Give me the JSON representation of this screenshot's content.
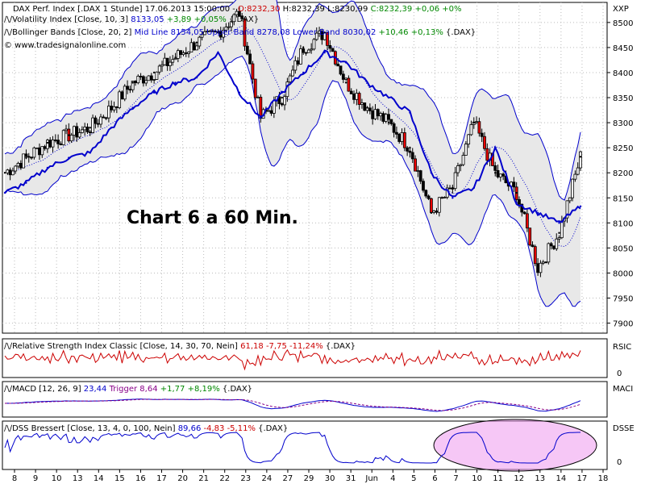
{
  "main_panel": {
    "title_line": {
      "prefix": "DAX Perf. Index [.DAX  1 Stunde] 17.06.2013 15:00:00 - ",
      "open": "O:8232,30",
      "high": "H:8232,39",
      "low": "L:8230,99",
      "close": "C:8232,39",
      "change": "+0,06 +0%"
    },
    "vix_line": {
      "label": "Volatility Index [Close, 10, 3]",
      "value": "8133,05",
      "change": "+3,89 +0,05%",
      "suffix": "{.DAX}"
    },
    "boll_line": {
      "label": "Bollinger Bands [Close, 20, 2]",
      "values": "Mid Line 8154,05 Upper Band 8278,08 Lower Band 8030,02",
      "change": "+10,46 +0,13%",
      "suffix": "{.DAX}"
    },
    "copyright": "© www.tradesignalonline.com",
    "annotation": "Chart 6 a 60 Min.",
    "axis_label": "XXP",
    "ticks": [
      "8500",
      "8450",
      "8400",
      "8350",
      "8300",
      "8250",
      "8200",
      "8150",
      "8100",
      "8050",
      "8000",
      "7950",
      "7900"
    ]
  },
  "rsi_panel": {
    "label": "Relative Strength Index Classic [Close, 14, 30, 70, Nein]",
    "value": "61,18",
    "change": "-7,75 -11,24%",
    "suffix": "{.DAX}",
    "axis_label": "RSIC",
    "tick": "0"
  },
  "macd_panel": {
    "label": "MACD [12, 26, 9]",
    "value": "23,44",
    "trigger_label": "Trigger",
    "trigger": "8,64",
    "change": "+1,77 +8,19%",
    "suffix": "{.DAX}",
    "axis_label": "MACI"
  },
  "dss_panel": {
    "label": "DSS Bressert [Close, 13, 4, 0, 100, Nein]",
    "value": "89,66",
    "change": "-4,83 -5,11%",
    "suffix": "{.DAX}",
    "axis_label": "DSSE",
    "tick": "0"
  },
  "x_axis": {
    "labels": [
      "8",
      "9",
      "10",
      "13",
      "14",
      "15",
      "16",
      "17",
      "20",
      "21",
      "22",
      "23",
      "24",
      "27",
      "29",
      "30",
      "31",
      "Jun",
      "4",
      "5",
      "6",
      "7",
      "10",
      "11",
      "12",
      "13",
      "14",
      "17",
      "18"
    ]
  },
  "colors": {
    "price_line": "#000000",
    "bollinger_bands": "#0000cc",
    "volatility_index": "#0000cc",
    "band_fill": "#e8e8e8",
    "rsi": "#cc0000",
    "macd": "#0000cc",
    "macd_trigger": "#880088",
    "dss": "#0000cc",
    "highlight": "#ee99ee",
    "change_positive": "#008800",
    "change_negative": "#cc0000"
  },
  "chart_data": {
    "type": "line",
    "x": [
      "8",
      "9",
      "10",
      "13",
      "14",
      "15",
      "16",
      "17",
      "20",
      "21",
      "22",
      "23",
      "24",
      "27",
      "29",
      "30",
      "31",
      "Jun",
      "4",
      "5",
      "6",
      "7",
      "10",
      "11",
      "12",
      "13",
      "14",
      "17"
    ],
    "ylim": [
      7880,
      8540
    ],
    "series": [
      {
        "name": "DAX Perf. Index",
        "values": [
          8200,
          8230,
          8260,
          8275,
          8290,
          8330,
          8380,
          8400,
          8430,
          8460,
          8480,
          8520,
          8310,
          8350,
          8450,
          8480,
          8380,
          8330,
          8300,
          8250,
          8120,
          8170,
          8300,
          8200,
          8160,
          8010,
          8080,
          8232
        ]
      },
      {
        "name": "Volatility Index",
        "values": [
          8160,
          8180,
          8210,
          8230,
          8240,
          8290,
          8330,
          8360,
          8380,
          8390,
          8440,
          8360,
          8310,
          8360,
          8400,
          8440,
          8420,
          8380,
          8350,
          8320,
          8200,
          8150,
          8170,
          8250,
          8140,
          8120,
          8100,
          8133
        ]
      }
    ]
  }
}
